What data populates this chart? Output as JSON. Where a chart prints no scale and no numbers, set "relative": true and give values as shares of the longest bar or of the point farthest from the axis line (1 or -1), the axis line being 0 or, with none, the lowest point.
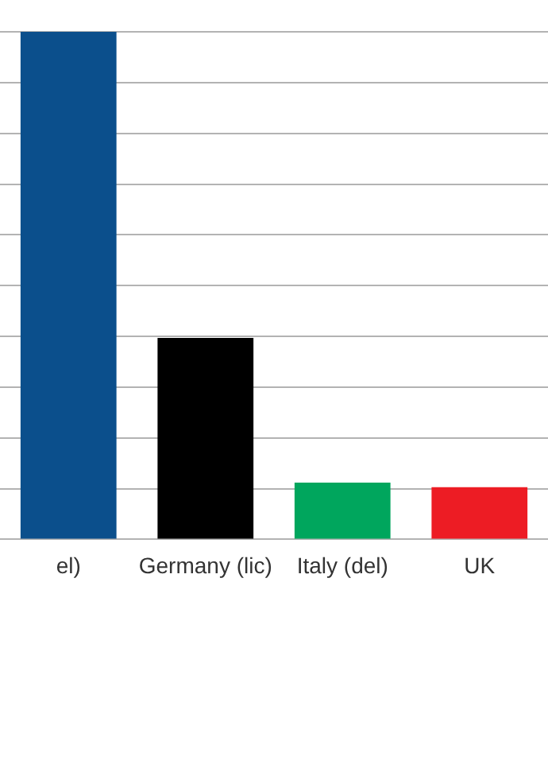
{
  "chart_data": {
    "type": "bar",
    "relative": true,
    "grid": "y",
    "categories": [
      "el)",
      "Germany (lic)",
      "Italy (del)",
      "UK"
    ],
    "values": [
      1,
      0.397,
      0.112,
      0.103
    ],
    "colors": [
      "#0b4f8c",
      "#000000",
      "#00a65d",
      "#ed1c24"
    ]
  }
}
